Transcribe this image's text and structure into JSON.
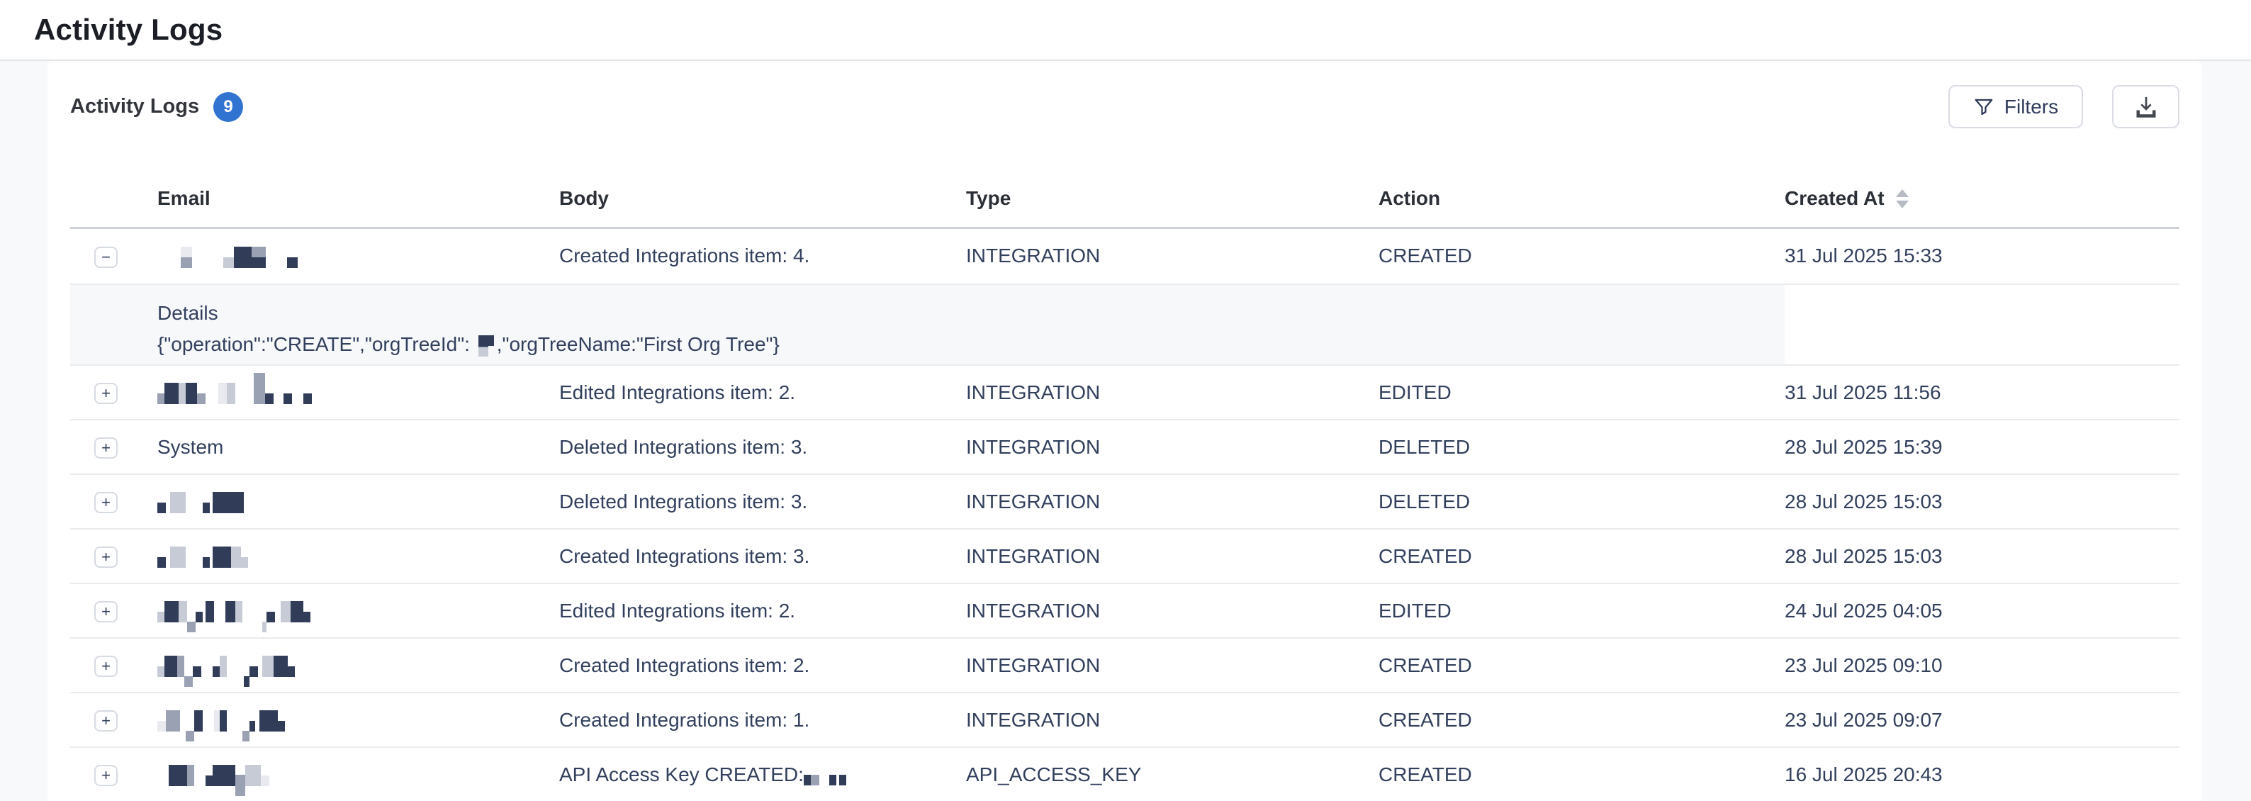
{
  "page": {
    "title": "Activity Logs"
  },
  "card": {
    "heading": "Activity Logs",
    "count": "9",
    "accent_color": "#3173d1"
  },
  "toolbar": {
    "filters_label": "Filters",
    "export_icon": "download-icon",
    "filter_icon": "funnel-icon"
  },
  "ui": {
    "expand_symbol": "+",
    "collapse_symbol": "−",
    "text_color": "#32405e",
    "redaction_colors": {
      "navy": "#303c58",
      "gray": "#99a1b2",
      "light": "#c6cbd6",
      "pale": "#e8eaf0"
    }
  },
  "table": {
    "columns": [
      {
        "label": "",
        "name": "expand"
      },
      {
        "label": "Email",
        "name": "email",
        "sortable": false
      },
      {
        "label": "Body",
        "name": "body",
        "sortable": false
      },
      {
        "label": "Type",
        "name": "type",
        "sortable": false
      },
      {
        "label": "Action",
        "name": "action",
        "sortable": false
      },
      {
        "label": "Created At",
        "name": "created_at",
        "sortable": true
      }
    ],
    "rows": [
      {
        "expanded": true,
        "email": "",
        "email_blocks": [
          [
            33,
            "x"
          ],
          [
            16,
            "eg",
            "f"
          ],
          [
            44,
            "x"
          ],
          [
            15,
            "l",
            "b"
          ],
          [
            25,
            "n",
            "f"
          ],
          [
            20,
            "gn",
            "f"
          ],
          [
            30,
            "x"
          ],
          [
            15,
            "n",
            "b"
          ]
        ],
        "body": "Created Integrations item: 4.",
        "type": "INTEGRATION",
        "action": "CREATED",
        "created_at": "31 Jul 2025 15:33",
        "details": {
          "label": "Details",
          "json_prefix": "{\"operation\":\"CREATE\",\"orgTreeId\": ",
          "json_redacted_blocks": [
            [
              14,
              "nl",
              "f"
            ],
            [
              8,
              "n",
              "t"
            ]
          ],
          "json_suffix": ",\"orgTreeName:\"First Org Tree\"}"
        }
      },
      {
        "expanded": false,
        "email": "",
        "email_blocks": [
          [
            10,
            "g",
            "b"
          ],
          [
            20,
            "n",
            "f"
          ],
          [
            10,
            "l",
            "f"
          ],
          [
            16,
            "n",
            "f"
          ],
          [
            12,
            "g",
            "b"
          ],
          [
            18,
            "x"
          ],
          [
            12,
            "e",
            "f"
          ],
          [
            12,
            "l",
            "f"
          ],
          [
            26,
            "x"
          ],
          [
            16,
            "g",
            "r"
          ],
          [
            12,
            "n",
            "b"
          ],
          [
            14,
            "x"
          ],
          [
            12,
            "n",
            "b"
          ],
          [
            16,
            "x"
          ],
          [
            12,
            "n",
            "b"
          ]
        ],
        "body": "Edited Integrations item: 2.",
        "type": "INTEGRATION",
        "action": "EDITED",
        "created_at": "31 Jul 2025 11:56"
      },
      {
        "expanded": false,
        "email": "System",
        "body": "Deleted Integrations item: 3.",
        "type": "INTEGRATION",
        "action": "DELETED",
        "created_at": "28 Jul 2025 15:39"
      },
      {
        "expanded": false,
        "email": "",
        "email_blocks": [
          [
            12,
            "n",
            "b"
          ],
          [
            6,
            "x"
          ],
          [
            22,
            "l",
            "f"
          ],
          [
            24,
            "x"
          ],
          [
            10,
            "n",
            "b"
          ],
          [
            4,
            "x"
          ],
          [
            44,
            "n",
            "f"
          ]
        ],
        "body": "Deleted Integrations item: 3.",
        "type": "INTEGRATION",
        "action": "DELETED",
        "created_at": "28 Jul 2025 15:03"
      },
      {
        "expanded": false,
        "email": "",
        "email_blocks": [
          [
            12,
            "n",
            "b"
          ],
          [
            6,
            "x"
          ],
          [
            22,
            "l",
            "f"
          ],
          [
            24,
            "x"
          ],
          [
            10,
            "n",
            "b"
          ],
          [
            4,
            "x"
          ],
          [
            26,
            "n",
            "f"
          ],
          [
            14,
            "l",
            "f"
          ],
          [
            10,
            "l",
            "b"
          ]
        ],
        "body": "Created Integrations item: 3.",
        "type": "INTEGRATION",
        "action": "CREATED",
        "created_at": "28 Jul 2025 15:03"
      },
      {
        "expanded": false,
        "email": "",
        "email_blocks": [
          [
            10,
            "l",
            "b"
          ],
          [
            20,
            "n",
            "f"
          ],
          [
            12,
            "l",
            "f"
          ],
          [
            12,
            "g",
            "d"
          ],
          [
            10,
            "n",
            "b"
          ],
          [
            4,
            "x"
          ],
          [
            12,
            "n",
            "f"
          ],
          [
            16,
            "x"
          ],
          [
            14,
            "n",
            "f"
          ],
          [
            10,
            "l",
            "f"
          ],
          [
            28,
            "x"
          ],
          [
            6,
            "l",
            "d"
          ],
          [
            12,
            "n",
            "b"
          ],
          [
            8,
            "x"
          ],
          [
            14,
            "l",
            "f"
          ],
          [
            18,
            "n",
            "f"
          ],
          [
            10,
            "n",
            "b"
          ]
        ],
        "body": "Edited Integrations item: 2.",
        "type": "INTEGRATION",
        "action": "EDITED",
        "created_at": "24 Jul 2025 04:05"
      },
      {
        "expanded": false,
        "email": "",
        "email_blocks": [
          [
            10,
            "l",
            "b"
          ],
          [
            18,
            "n",
            "f"
          ],
          [
            10,
            "g",
            "f"
          ],
          [
            12,
            "g",
            "d"
          ],
          [
            12,
            "n",
            "b"
          ],
          [
            16,
            "x"
          ],
          [
            10,
            "n",
            "b"
          ],
          [
            10,
            "l",
            "f"
          ],
          [
            24,
            "x"
          ],
          [
            8,
            "n",
            "d"
          ],
          [
            12,
            "n",
            "b"
          ],
          [
            6,
            "x"
          ],
          [
            16,
            "l",
            "f"
          ],
          [
            20,
            "n",
            "f"
          ],
          [
            10,
            "n",
            "b"
          ]
        ],
        "body": "Created Integrations item: 2.",
        "type": "INTEGRATION",
        "action": "CREATED",
        "created_at": "23 Jul 2025 09:10"
      },
      {
        "expanded": false,
        "email": "",
        "email_blocks": [
          [
            12,
            "e",
            "b"
          ],
          [
            20,
            "g",
            "f"
          ],
          [
            8,
            "x"
          ],
          [
            12,
            "g",
            "d"
          ],
          [
            12,
            "n",
            "f"
          ],
          [
            16,
            "x"
          ],
          [
            8,
            "e",
            "f"
          ],
          [
            10,
            "n",
            "f"
          ],
          [
            22,
            "x"
          ],
          [
            10,
            "g",
            "d"
          ],
          [
            8,
            "n",
            "b"
          ],
          [
            6,
            "x"
          ],
          [
            26,
            "n",
            "f"
          ],
          [
            10,
            "n",
            "b"
          ]
        ],
        "body": "Created Integrations item: 1.",
        "type": "INTEGRATION",
        "action": "CREATED",
        "created_at": "23 Jul 2025 09:07"
      },
      {
        "expanded": false,
        "email": "",
        "email_blocks": [
          [
            16,
            "x"
          ],
          [
            26,
            "n",
            "f"
          ],
          [
            10,
            "g",
            "f"
          ],
          [
            16,
            "x"
          ],
          [
            10,
            "n",
            "b"
          ],
          [
            32,
            "n",
            "f"
          ],
          [
            14,
            "g",
            "D"
          ],
          [
            22,
            "l",
            "f"
          ],
          [
            12,
            "e",
            "b"
          ]
        ],
        "body": "API Access Key CREATED:",
        "body_blocks": [
          [
            10,
            "n",
            "b"
          ],
          [
            12,
            "g",
            "b"
          ],
          [
            14,
            "x"
          ],
          [
            10,
            "n",
            "b"
          ],
          [
            4,
            "x"
          ],
          [
            10,
            "n",
            "b"
          ]
        ],
        "type": "API_ACCESS_KEY",
        "action": "CREATED",
        "created_at": "16 Jul 2025 20:43"
      }
    ]
  }
}
